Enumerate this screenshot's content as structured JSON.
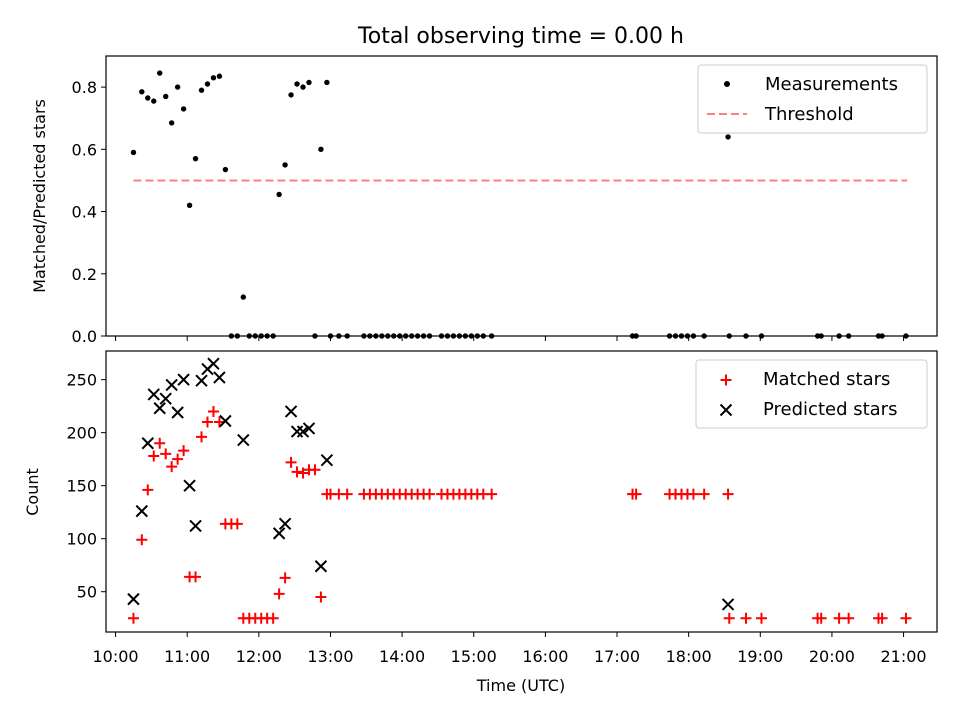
{
  "chart_data": [
    {
      "type": "scatter",
      "title": "Total observing time = 0.00 h",
      "ylabel": "Matched/Predicted stars",
      "xlabel": "",
      "ylim": [
        0,
        0.9
      ],
      "y_ticks": [
        "0.0",
        "0.2",
        "0.4",
        "0.6",
        "0.8"
      ],
      "legend": {
        "position": "top-right",
        "entries": [
          {
            "label": "Measurements",
            "color": "#000000",
            "marker": "dot"
          },
          {
            "label": "Threshold",
            "color": "#ff7f7f",
            "marker": "dashed-line"
          }
        ]
      },
      "threshold": {
        "value": 0.5,
        "x_start": "10:15",
        "x_end": "21:03"
      },
      "series": [
        {
          "name": "Measurements",
          "color": "#000000",
          "points": [
            [
              "10:15",
              0.59
            ],
            [
              "10:22",
              0.785
            ],
            [
              "10:27",
              0.765
            ],
            [
              "10:32",
              0.755
            ],
            [
              "10:37",
              0.845
            ],
            [
              "10:42",
              0.77
            ],
            [
              "10:47",
              0.685
            ],
            [
              "10:52",
              0.8
            ],
            [
              "10:57",
              0.73
            ],
            [
              "11:02",
              0.42
            ],
            [
              "11:07",
              0.57
            ],
            [
              "11:12",
              0.79
            ],
            [
              "11:17",
              0.81
            ],
            [
              "11:22",
              0.83
            ],
            [
              "11:27",
              0.835
            ],
            [
              "11:32",
              0.535
            ],
            [
              "11:37",
              0.0
            ],
            [
              "11:42",
              0.0
            ],
            [
              "11:47",
              0.125
            ],
            [
              "11:52",
              0.0
            ],
            [
              "11:57",
              0.0
            ],
            [
              "12:02",
              0.0
            ],
            [
              "12:07",
              0.0
            ],
            [
              "12:12",
              0.0
            ],
            [
              "12:17",
              0.455
            ],
            [
              "12:22",
              0.55
            ],
            [
              "12:27",
              0.775
            ],
            [
              "12:32",
              0.81
            ],
            [
              "12:37",
              0.8
            ],
            [
              "12:42",
              0.815
            ],
            [
              "12:47",
              0.0
            ],
            [
              "12:52",
              0.6
            ],
            [
              "12:57",
              0.815
            ],
            [
              "13:00",
              0.0
            ],
            [
              "13:07",
              0.0
            ],
            [
              "13:14",
              0.0
            ],
            [
              "13:28",
              0.0
            ],
            [
              "13:33",
              0.0
            ],
            [
              "13:38",
              0.0
            ],
            [
              "13:43",
              0.0
            ],
            [
              "13:48",
              0.0
            ],
            [
              "13:53",
              0.0
            ],
            [
              "13:58",
              0.0
            ],
            [
              "14:03",
              0.0
            ],
            [
              "14:08",
              0.0
            ],
            [
              "14:13",
              0.0
            ],
            [
              "14:18",
              0.0
            ],
            [
              "14:23",
              0.0
            ],
            [
              "14:33",
              0.0
            ],
            [
              "14:38",
              0.0
            ],
            [
              "14:43",
              0.0
            ],
            [
              "14:48",
              0.0
            ],
            [
              "14:53",
              0.0
            ],
            [
              "14:58",
              0.0
            ],
            [
              "15:03",
              0.0
            ],
            [
              "15:08",
              0.0
            ],
            [
              "15:15",
              0.0
            ],
            [
              "17:13",
              0.0
            ],
            [
              "17:16",
              0.0
            ],
            [
              "17:44",
              0.0
            ],
            [
              "17:49",
              0.0
            ],
            [
              "17:54",
              0.0
            ],
            [
              "17:59",
              0.0
            ],
            [
              "18:04",
              0.0
            ],
            [
              "18:13",
              0.0
            ],
            [
              "18:33",
              0.64
            ],
            [
              "18:34",
              0.0
            ],
            [
              "18:48",
              0.0
            ],
            [
              "19:01",
              0.0
            ],
            [
              "19:48",
              0.0
            ],
            [
              "19:51",
              0.0
            ],
            [
              "20:06",
              0.0
            ],
            [
              "20:14",
              0.0
            ],
            [
              "20:39",
              0.0
            ],
            [
              "20:42",
              0.0
            ],
            [
              "21:02",
              0.0
            ]
          ]
        }
      ]
    },
    {
      "type": "scatter",
      "title": "",
      "xlabel": "Time (UTC)",
      "ylabel": "Count",
      "ylim": [
        12,
        277
      ],
      "y_ticks": [
        "50",
        "100",
        "150",
        "200",
        "250"
      ],
      "x_ticks": [
        "10:00",
        "11:00",
        "12:00",
        "13:00",
        "14:00",
        "15:00",
        "16:00",
        "17:00",
        "18:00",
        "19:00",
        "20:00",
        "21:00"
      ],
      "xlim": [
        "09:52",
        "21:28"
      ],
      "legend": {
        "position": "top-right",
        "entries": [
          {
            "label": "Matched stars",
            "color": "#ff0000",
            "marker": "plus"
          },
          {
            "label": "Predicted stars",
            "color": "#000000",
            "marker": "x"
          }
        ]
      },
      "series": [
        {
          "name": "Matched stars",
          "color": "#ff0000",
          "marker": "plus",
          "points": [
            [
              "10:15",
              25
            ],
            [
              "10:22",
              99
            ],
            [
              "10:27",
              146
            ],
            [
              "10:32",
              178
            ],
            [
              "10:37",
              190
            ],
            [
              "10:42",
              180
            ],
            [
              "10:47",
              168
            ],
            [
              "10:52",
              175
            ],
            [
              "10:57",
              183
            ],
            [
              "11:02",
              64
            ],
            [
              "11:07",
              64
            ],
            [
              "11:12",
              196
            ],
            [
              "11:17",
              210
            ],
            [
              "11:22",
              220
            ],
            [
              "11:27",
              210
            ],
            [
              "11:32",
              114
            ],
            [
              "11:37",
              114
            ],
            [
              "11:42",
              114
            ],
            [
              "11:47",
              25
            ],
            [
              "11:52",
              25
            ],
            [
              "11:57",
              25
            ],
            [
              "12:02",
              25
            ],
            [
              "12:07",
              25
            ],
            [
              "12:12",
              25
            ],
            [
              "12:17",
              48
            ],
            [
              "12:22",
              63
            ],
            [
              "12:27",
              172
            ],
            [
              "12:32",
              163
            ],
            [
              "12:37",
              162
            ],
            [
              "12:42",
              165
            ],
            [
              "12:47",
              165
            ],
            [
              "12:52",
              45
            ],
            [
              "12:57",
              142
            ],
            [
              "13:00",
              142
            ],
            [
              "13:07",
              142
            ],
            [
              "13:14",
              142
            ],
            [
              "13:28",
              142
            ],
            [
              "13:33",
              142
            ],
            [
              "13:38",
              142
            ],
            [
              "13:43",
              142
            ],
            [
              "13:48",
              142
            ],
            [
              "13:53",
              142
            ],
            [
              "13:58",
              142
            ],
            [
              "14:03",
              142
            ],
            [
              "14:08",
              142
            ],
            [
              "14:13",
              142
            ],
            [
              "14:18",
              142
            ],
            [
              "14:23",
              142
            ],
            [
              "14:33",
              142
            ],
            [
              "14:38",
              142
            ],
            [
              "14:43",
              142
            ],
            [
              "14:48",
              142
            ],
            [
              "14:53",
              142
            ],
            [
              "14:58",
              142
            ],
            [
              "15:03",
              142
            ],
            [
              "15:08",
              142
            ],
            [
              "15:15",
              142
            ],
            [
              "17:13",
              142
            ],
            [
              "17:16",
              142
            ],
            [
              "17:44",
              142
            ],
            [
              "17:49",
              142
            ],
            [
              "17:54",
              142
            ],
            [
              "17:59",
              142
            ],
            [
              "18:04",
              142
            ],
            [
              "18:13",
              142
            ],
            [
              "18:33",
              142
            ],
            [
              "18:34",
              25
            ],
            [
              "18:48",
              25
            ],
            [
              "19:01",
              25
            ],
            [
              "19:48",
              25
            ],
            [
              "19:51",
              25
            ],
            [
              "20:06",
              25
            ],
            [
              "20:14",
              25
            ],
            [
              "20:39",
              25
            ],
            [
              "20:42",
              25
            ],
            [
              "21:02",
              25
            ]
          ]
        },
        {
          "name": "Predicted stars",
          "color": "#000000",
          "marker": "x",
          "points": [
            [
              "10:15",
              43
            ],
            [
              "10:22",
              126
            ],
            [
              "10:27",
              190
            ],
            [
              "10:32",
              236
            ],
            [
              "10:37",
              223
            ],
            [
              "10:42",
              232
            ],
            [
              "10:47",
              245
            ],
            [
              "10:52",
              219
            ],
            [
              "10:57",
              250
            ],
            [
              "11:02",
              150
            ],
            [
              "11:07",
              112
            ],
            [
              "11:12",
              249
            ],
            [
              "11:17",
              260
            ],
            [
              "11:22",
              265
            ],
            [
              "11:27",
              252
            ],
            [
              "11:32",
              211
            ],
            [
              "11:47",
              193
            ],
            [
              "12:17",
              105
            ],
            [
              "12:22",
              114
            ],
            [
              "12:27",
              220
            ],
            [
              "12:32",
              201
            ],
            [
              "12:37",
              201
            ],
            [
              "12:42",
              204
            ],
            [
              "12:52",
              74
            ],
            [
              "12:57",
              174
            ],
            [
              "18:33",
              38
            ]
          ]
        }
      ]
    }
  ]
}
